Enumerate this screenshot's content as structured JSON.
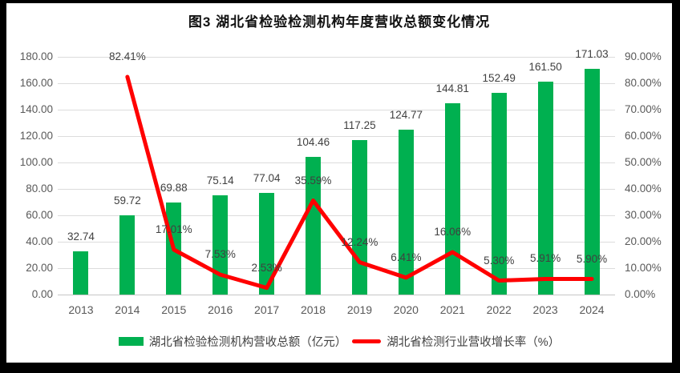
{
  "colors": {
    "frame": "#000000",
    "panel": "#FFFFFF",
    "bar": "#00B050",
    "line": "#FF0000",
    "grid": "#DCDCDC",
    "tick_text": "#595959",
    "label_text": "#404040",
    "title_text": "#111111"
  },
  "chart_data": {
    "type": "bar",
    "subtype": "bar+line combo, dual axis",
    "title": "图3 湖北省检验检测机构年度营收总额变化情况",
    "categories": [
      "2013",
      "2014",
      "2015",
      "2016",
      "2017",
      "2018",
      "2019",
      "2020",
      "2021",
      "2022",
      "2023",
      "2024"
    ],
    "series": [
      {
        "name": "湖北省检验检测机构营收总额（亿元）",
        "type": "bar",
        "axis": "left",
        "color": "#00B050",
        "values": [
          32.74,
          59.72,
          69.88,
          75.14,
          77.04,
          104.46,
          117.25,
          124.77,
          144.81,
          152.49,
          161.5,
          171.03
        ],
        "labels": [
          "32.74",
          "59.72",
          "69.88",
          "75.14",
          "77.04",
          "104.46",
          "117.25",
          "124.77",
          "144.81",
          "152.49",
          "161.50",
          "171.03"
        ]
      },
      {
        "name": "湖北省检测行业营收增长率（%）",
        "type": "line",
        "axis": "right",
        "color": "#FF0000",
        "values": [
          null,
          82.41,
          17.01,
          7.53,
          2.53,
          35.59,
          12.24,
          6.41,
          16.06,
          5.3,
          5.91,
          5.9
        ],
        "labels": [
          "",
          "82.41%",
          "17.01%",
          "7.53%",
          "2.53%",
          "35.59%",
          "12.24%",
          "6.41%",
          "16.06%",
          "5.30%",
          "5.91%",
          "5.90%"
        ]
      }
    ],
    "left_axis": {
      "min": 0,
      "max": 180,
      "step": 20,
      "tick_labels": [
        "0.00",
        "20.00",
        "40.00",
        "60.00",
        "80.00",
        "100.00",
        "120.00",
        "140.00",
        "160.00",
        "180.00"
      ]
    },
    "right_axis": {
      "min": 0,
      "max": 90,
      "step": 10,
      "tick_labels": [
        "0.00%",
        "10.00%",
        "20.00%",
        "30.00%",
        "40.00%",
        "50.00%",
        "60.00%",
        "70.00%",
        "80.00%",
        "90.00%"
      ]
    },
    "grid": true,
    "legend_position": "bottom",
    "legend": [
      "湖北省检验检测机构营收总额（亿元）",
      "湖北省检测行业营收增长率（%）"
    ]
  }
}
